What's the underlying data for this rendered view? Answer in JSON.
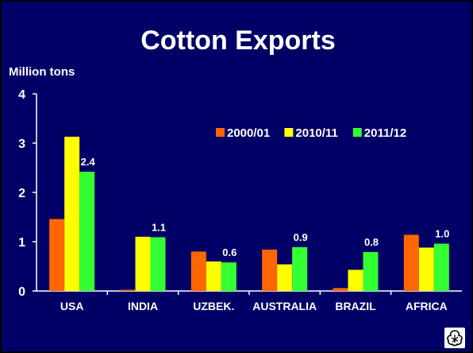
{
  "colors": {
    "background": "#000066",
    "axis": "#ffffff",
    "series": [
      "#ff6600",
      "#ffff00",
      "#33ff33"
    ]
  },
  "chart_data": {
    "type": "bar",
    "title": "Cotton Exports",
    "ylabel": "Million tons",
    "xlabel": "",
    "ylim": [
      0,
      4
    ],
    "yticks": [
      0,
      1,
      2,
      3,
      4
    ],
    "grid": false,
    "legend_position": "upper-right",
    "categories": [
      "USA",
      "INDIA",
      "UZBEK.",
      "AUSTRALIA",
      "BRAZIL",
      "AFRICA"
    ],
    "series": [
      {
        "name": "2000/01",
        "values": [
          1.46,
          0.02,
          0.8,
          0.84,
          0.06,
          1.14
        ]
      },
      {
        "name": "2010/11",
        "values": [
          3.13,
          1.1,
          0.6,
          0.54,
          0.43,
          0.88
        ]
      },
      {
        "name": "2011/12",
        "values": [
          2.42,
          1.09,
          0.58,
          0.89,
          0.79,
          0.96
        ]
      }
    ],
    "data_labels": [
      {
        "category": "USA",
        "series": "2011/12",
        "text": "2.4"
      },
      {
        "category": "INDIA",
        "series": "2011/12",
        "text": "1.1"
      },
      {
        "category": "UZBEK.",
        "series": "2011/12",
        "text": "0.6"
      },
      {
        "category": "AUSTRALIA",
        "series": "2011/12",
        "text": "0.9"
      },
      {
        "category": "BRAZIL",
        "series": "2011/12",
        "text": "0.8"
      },
      {
        "category": "AFRICA",
        "series": "2011/12",
        "text": "1.0"
      }
    ]
  },
  "logo": {
    "icon": "cotton-boll-icon"
  }
}
